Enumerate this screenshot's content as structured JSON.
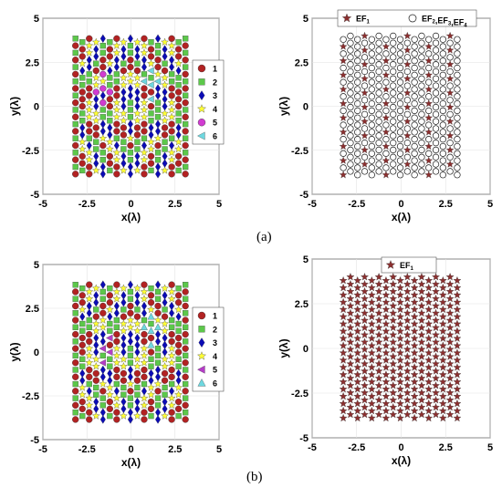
{
  "panel_labels": {
    "a": "(a)",
    "b": "(b)"
  },
  "colors": {
    "s1": "#b22222",
    "s2": "#5cc84a",
    "s3": "#0b0bb5",
    "s4": "#ffff33",
    "s5a": "#d13cd1",
    "s5b": "#b53cc8",
    "s6": "#6ed8e0",
    "ef1": "#8b2f2f",
    "ef2": "#1a1a1a"
  },
  "chart_data": [
    {
      "id": "a-left",
      "type": "scatter",
      "xlabel": "x(λ)",
      "ylabel": "y(λ)",
      "xlim": [
        -5,
        5
      ],
      "ylim": [
        -5,
        5
      ],
      "xticks": [
        "-5",
        "-2.5",
        "0",
        "2.5",
        "5"
      ],
      "yticks": [
        "5",
        "2.5",
        "0",
        "-2.5",
        "-5"
      ],
      "grid": true,
      "legend_position": "right-outside",
      "lattice": {
        "x_start": -3.15,
        "x_step": 0.39,
        "columns": 17,
        "y_start": -3.85,
        "y_step": 0.405,
        "rows": 20,
        "alt_column_offset": 0.2
      },
      "series": [
        {
          "name": "1",
          "marker": "circle",
          "color_key": "s1"
        },
        {
          "name": "2",
          "marker": "square",
          "color_key": "s2"
        },
        {
          "name": "3",
          "marker": "diamond",
          "color_key": "s3"
        },
        {
          "name": "4",
          "marker": "star",
          "color_key": "s4"
        },
        {
          "name": "5",
          "marker": "circle",
          "color_key": "s5a"
        },
        {
          "name": "6",
          "marker": "triangle-left",
          "color_key": "s6"
        }
      ]
    },
    {
      "id": "a-right",
      "type": "scatter",
      "xlabel": "x(λ)",
      "ylabel": "y(λ)",
      "xlim": [
        -5,
        5
      ],
      "ylim": [
        -5,
        5
      ],
      "xticks": [
        "-5",
        "-2.5",
        "0",
        "2.5",
        "5"
      ],
      "yticks": [
        "5",
        "2.5",
        "0",
        "-2.5",
        "-5"
      ],
      "grid": true,
      "legend_position": "top",
      "lattice": {
        "x_start": -3.25,
        "x_step": 0.4,
        "columns": 17,
        "y_start": -3.9,
        "y_step": 0.405,
        "rows": 20,
        "alt_column_offset": 0.2
      },
      "series": [
        {
          "name": "EF",
          "sub": "1",
          "marker": "star",
          "color_key": "ef1"
        },
        {
          "name": "EF",
          "sub": "2",
          "name_tail": ",EF",
          "sub2": "3",
          "name_tail2": ",EF",
          "sub3": "4",
          "marker": "open-circle",
          "color_key": "ef2"
        }
      ]
    },
    {
      "id": "b-left",
      "type": "scatter",
      "xlabel": "x(λ)",
      "ylabel": "y(λ)",
      "xlim": [
        -5,
        5
      ],
      "ylim": [
        -5,
        5
      ],
      "xticks": [
        "-5",
        "-2.5",
        "0",
        "2.5",
        "5"
      ],
      "yticks": [
        "5",
        "2.5",
        "0",
        "-2.5",
        "-5"
      ],
      "grid": true,
      "legend_position": "right-outside",
      "lattice": {
        "x_start": -3.15,
        "x_step": 0.39,
        "columns": 17,
        "y_start": -3.85,
        "y_step": 0.405,
        "rows": 20,
        "alt_column_offset": 0.2
      },
      "series": [
        {
          "name": "1",
          "marker": "circle",
          "color_key": "s1"
        },
        {
          "name": "2",
          "marker": "square",
          "color_key": "s2"
        },
        {
          "name": "3",
          "marker": "diamond",
          "color_key": "s3"
        },
        {
          "name": "4",
          "marker": "star",
          "color_key": "s4"
        },
        {
          "name": "5",
          "marker": "triangle-left",
          "color_key": "s5b"
        },
        {
          "name": "6",
          "marker": "triangle-up",
          "color_key": "s6"
        }
      ]
    },
    {
      "id": "b-right",
      "type": "scatter",
      "xlabel": "x(λ)",
      "ylabel": "y(λ)",
      "xlim": [
        -5,
        5
      ],
      "ylim": [
        -5,
        5
      ],
      "xticks": [
        "-5",
        "-2.5",
        "0",
        "2.5",
        "5"
      ],
      "yticks": [
        "5",
        "2.5",
        "0",
        "-2.5",
        "-5"
      ],
      "grid": true,
      "legend_position": "top",
      "lattice": {
        "x_start": -3.25,
        "x_step": 0.4,
        "columns": 17,
        "y_start": -3.9,
        "y_step": 0.405,
        "rows": 20,
        "alt_column_offset": 0.2
      },
      "series": [
        {
          "name": "EF",
          "sub": "1",
          "marker": "star",
          "color_key": "ef1"
        }
      ]
    }
  ]
}
